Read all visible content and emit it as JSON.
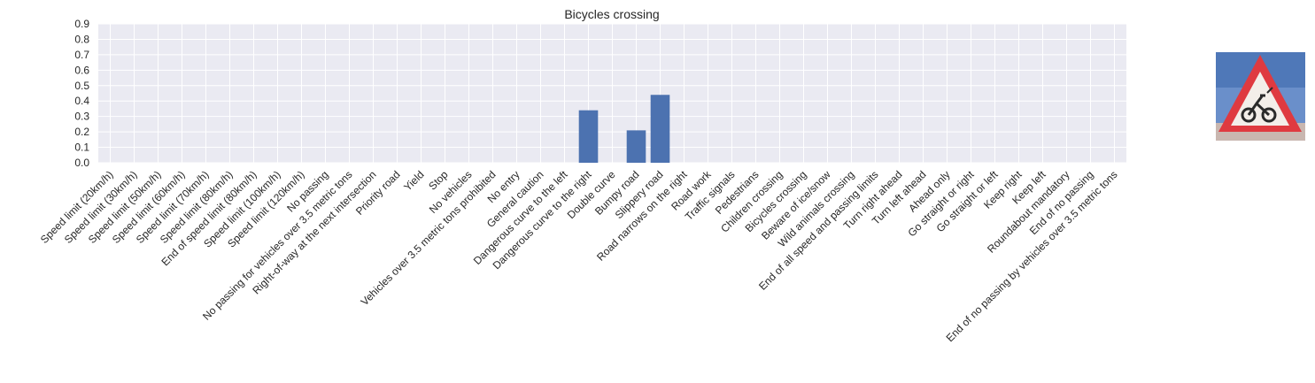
{
  "chart_data": {
    "type": "bar",
    "title": "Bicycles crossing",
    "xlabel": "",
    "ylabel": "",
    "ylim": [
      0,
      0.9
    ],
    "yticks": [
      "0.0",
      "0.1",
      "0.2",
      "0.3",
      "0.4",
      "0.5",
      "0.6",
      "0.7",
      "0.8",
      "0.9"
    ],
    "grid": true,
    "bar_color": "#4c72b0",
    "background_color": "#eaeaf2",
    "categories": [
      "Speed limit (20km/h)",
      "Speed limit (30km/h)",
      "Speed limit (50km/h)",
      "Speed limit (60km/h)",
      "Speed limit (70km/h)",
      "Speed limit (80km/h)",
      "End of speed limit (80km/h)",
      "Speed limit (100km/h)",
      "Speed limit (120km/h)",
      "No passing",
      "No passing for vehicles over 3.5 metric tons",
      "Right-of-way at the next intersection",
      "Priority road",
      "Yield",
      "Stop",
      "No vehicles",
      "Vehicles over 3.5 metric tons prohibited",
      "No entry",
      "General caution",
      "Dangerous curve to the left",
      "Dangerous curve to the right",
      "Double curve",
      "Bumpy road",
      "Slippery road",
      "Road narrows on the right",
      "Road work",
      "Traffic signals",
      "Pedestrians",
      "Children crossing",
      "Bicycles crossing",
      "Beware of ice/snow",
      "Wild animals crossing",
      "End of all speed and passing limits",
      "Turn right ahead",
      "Turn left ahead",
      "Ahead only",
      "Go straight or right",
      "Go straight or left",
      "Keep right",
      "Keep left",
      "Roundabout mandatory",
      "End of no passing",
      "End of no passing by vehicles over 3.5 metric tons"
    ],
    "values": [
      0,
      0,
      0,
      0,
      0,
      0,
      0,
      0,
      0,
      0,
      0,
      0,
      0,
      0,
      0,
      0,
      0,
      0,
      0,
      0,
      0.34,
      0,
      0.21,
      0.44,
      0,
      0,
      0,
      0,
      0,
      0,
      0,
      0,
      0,
      0,
      0,
      0,
      0,
      0,
      0,
      0,
      0,
      0,
      0
    ]
  },
  "thumbnail": {
    "icon": "bicycles-crossing-sign-icon",
    "sky_color": "#5f86c4",
    "border_color": "#e0343c"
  }
}
